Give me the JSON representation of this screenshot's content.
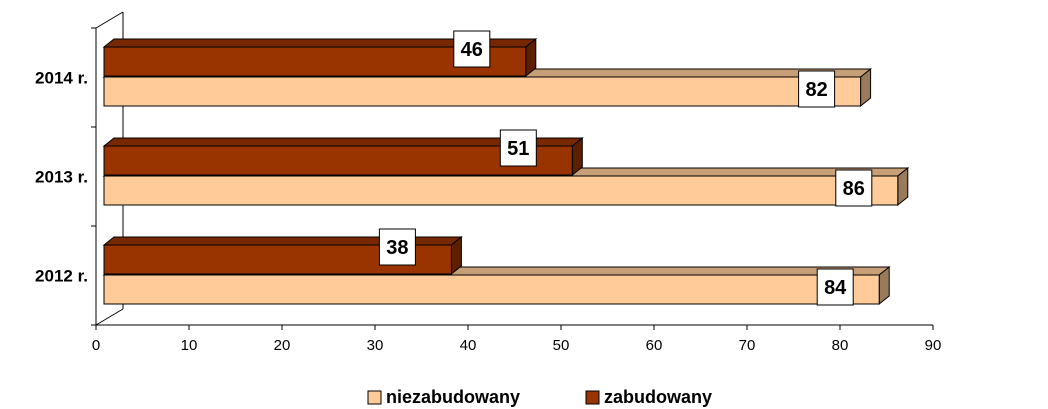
{
  "chart_data": {
    "type": "bar",
    "orientation": "horizontal",
    "categories": [
      "2012 r.",
      "2013 r.",
      "2014 r."
    ],
    "series": [
      {
        "name": "niezabudowany",
        "values": [
          84,
          86,
          82
        ],
        "color": "#FFCC99"
      },
      {
        "name": "zabudowany",
        "values": [
          38,
          51,
          46
        ],
        "color": "#993300"
      }
    ],
    "xlim": [
      0,
      90
    ],
    "xticks": [
      "0",
      "10",
      "20",
      "30",
      "40",
      "50",
      "60",
      "70",
      "80",
      "90"
    ],
    "title": "",
    "xlabel": "",
    "ylabel": "",
    "grid": false,
    "legend": "bottom",
    "style": "3d"
  }
}
